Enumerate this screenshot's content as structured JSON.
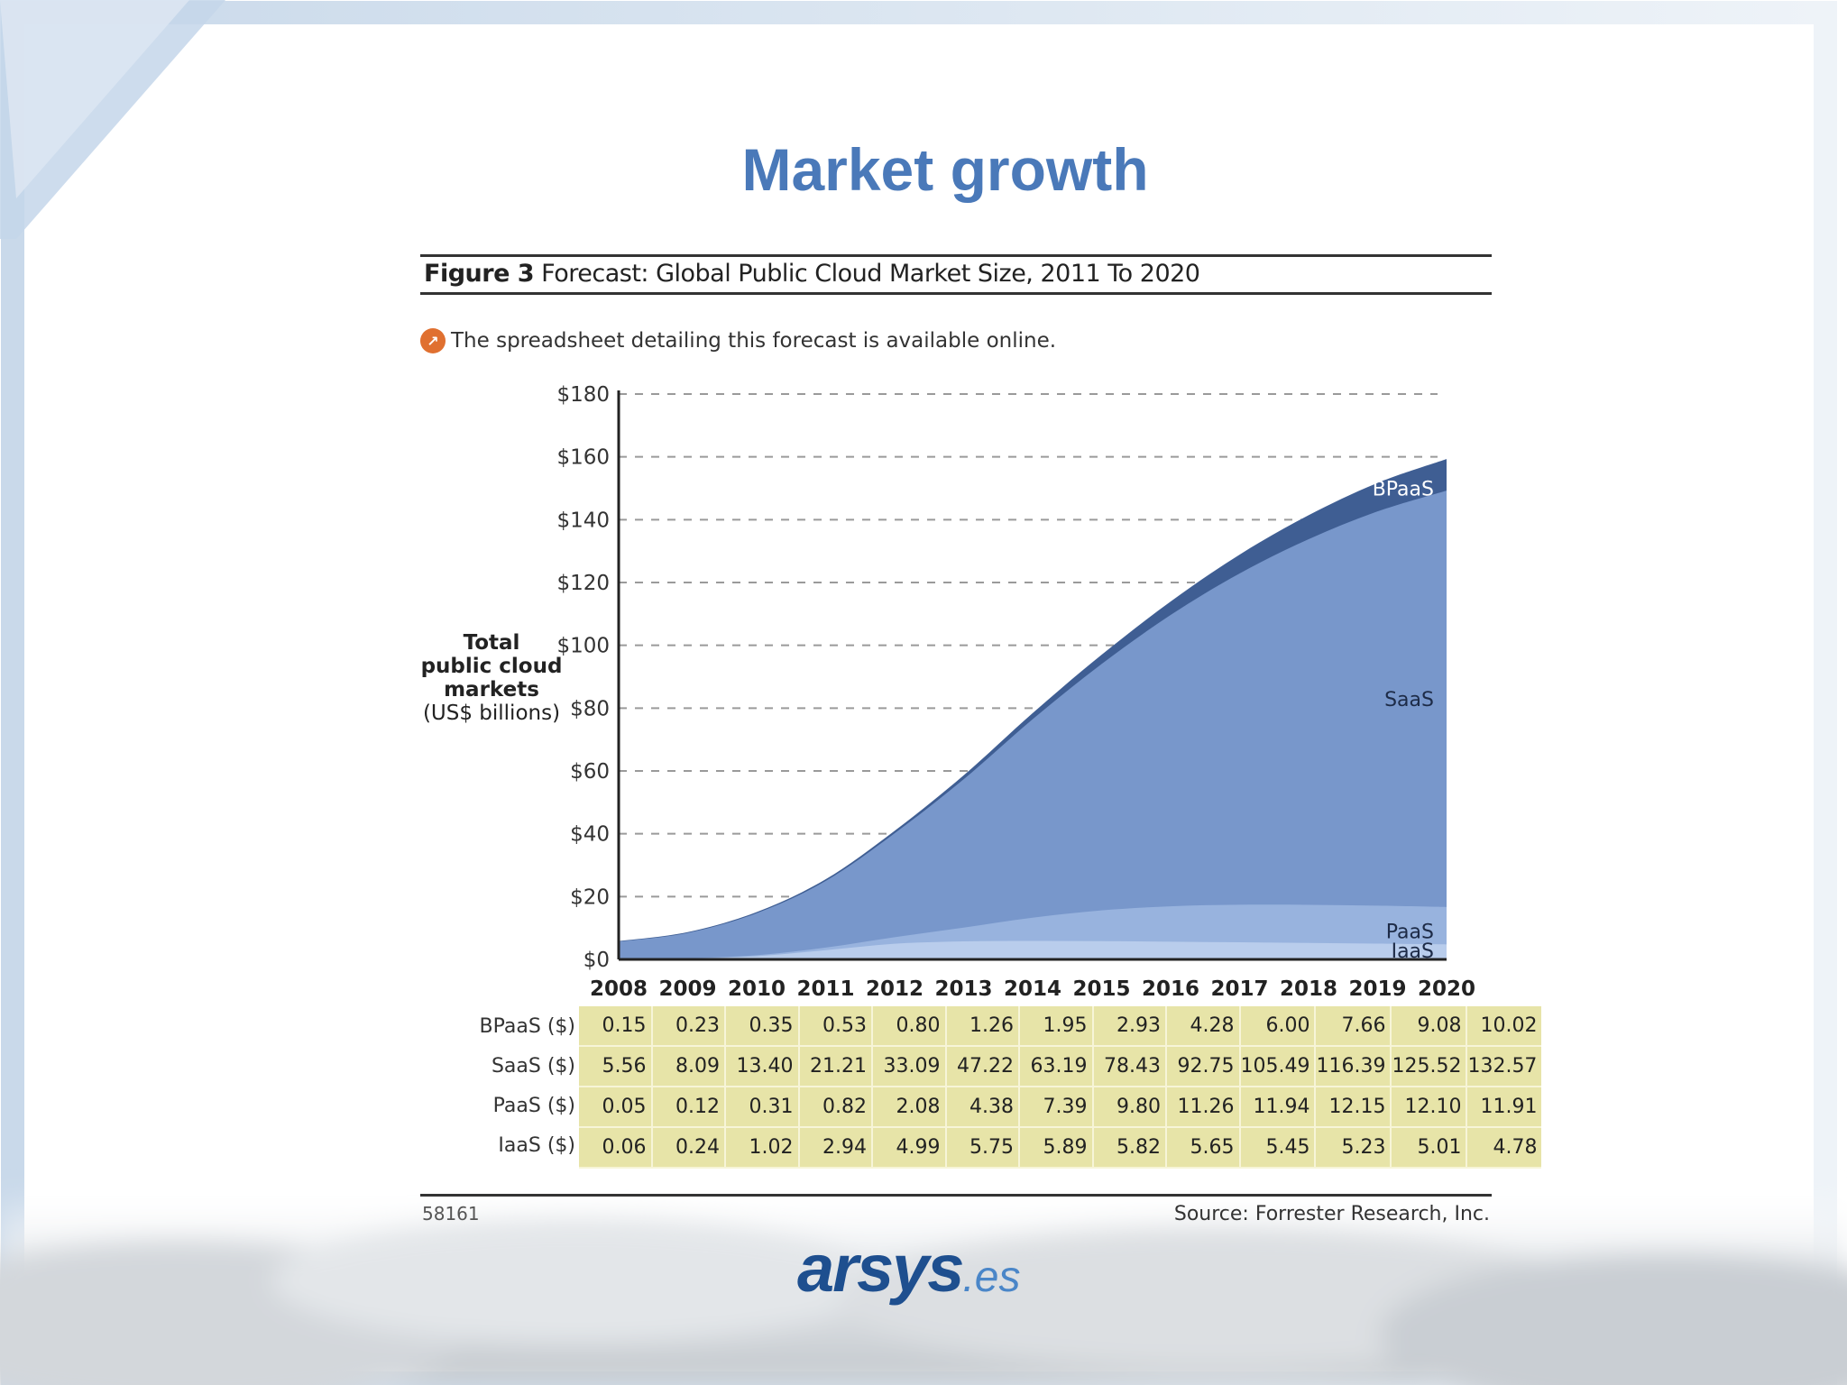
{
  "slide": {
    "title": "Market growth",
    "logo_main": "arsys",
    "logo_suffix": ".es"
  },
  "figure": {
    "caption_label": "Figure 3",
    "caption_text": "Forecast: Global Public Cloud Market Size, 2011 To 2020",
    "note": "The spreadsheet detailing this forecast is available online.",
    "note_icon": "info-arrow-icon",
    "footer_id": "58161",
    "footer_source": "Source: Forrester Research, Inc."
  },
  "colors": {
    "title": "#4a79b9",
    "BPaaS": "#3f5e93",
    "SaaS": "#7897cb",
    "PaaS": "#98b3de",
    "IaaS": "#b9cdec",
    "table_bg": "#e7e4a8"
  },
  "chart_data": {
    "type": "area",
    "stacked": true,
    "ylabel": "Total public cloud markets (US$ billions)",
    "ylabel_lines": [
      "Total",
      "public cloud",
      "markets",
      "(US$ billions)"
    ],
    "ylim": [
      0,
      180
    ],
    "yticks": [
      "$0",
      "$20",
      "$40",
      "$60",
      "$80",
      "$100",
      "$120",
      "$140",
      "$160",
      "$180"
    ],
    "ytick_values": [
      0,
      20,
      40,
      60,
      80,
      100,
      120,
      140,
      160,
      180
    ],
    "grid": true,
    "categories": [
      "2008",
      "2009",
      "2010",
      "2011",
      "2012",
      "2013",
      "2014",
      "2015",
      "2016",
      "2017",
      "2018",
      "2019",
      "2020"
    ],
    "series": [
      {
        "name": "IaaS",
        "label": "IaaS ($)",
        "values": [
          0.06,
          0.24,
          1.02,
          2.94,
          4.99,
          5.75,
          5.89,
          5.82,
          5.65,
          5.45,
          5.23,
          5.01,
          4.78
        ]
      },
      {
        "name": "PaaS",
        "label": "PaaS ($)",
        "values": [
          0.05,
          0.12,
          0.31,
          0.82,
          2.08,
          4.38,
          7.39,
          9.8,
          11.26,
          11.94,
          12.15,
          12.1,
          11.91
        ]
      },
      {
        "name": "SaaS",
        "label": "SaaS ($)",
        "values": [
          5.56,
          8.09,
          13.4,
          21.21,
          33.09,
          47.22,
          63.19,
          78.43,
          92.75,
          105.49,
          116.39,
          125.52,
          132.57
        ]
      },
      {
        "name": "BPaaS",
        "label": "BPaaS ($)",
        "values": [
          0.15,
          0.23,
          0.35,
          0.53,
          0.8,
          1.26,
          1.95,
          2.93,
          4.28,
          6.0,
          7.66,
          9.08,
          10.02
        ]
      }
    ],
    "table": {
      "row_order": [
        "BPaaS",
        "SaaS",
        "PaaS",
        "IaaS"
      ],
      "rows": [
        {
          "label": "BPaaS ($)",
          "values": [
            "0.15",
            "0.23",
            "0.35",
            "0.53",
            "0.80",
            "1.26",
            "1.95",
            "2.93",
            "4.28",
            "6.00",
            "7.66",
            "9.08",
            "10.02"
          ]
        },
        {
          "label": "SaaS ($)",
          "values": [
            "5.56",
            "8.09",
            "13.40",
            "21.21",
            "33.09",
            "47.22",
            "63.19",
            "78.43",
            "92.75",
            "105.49",
            "116.39",
            "125.52",
            "132.57"
          ]
        },
        {
          "label": "PaaS ($)",
          "values": [
            "0.05",
            "0.12",
            "0.31",
            "0.82",
            "2.08",
            "4.38",
            "7.39",
            "9.80",
            "11.26",
            "11.94",
            "12.15",
            "12.10",
            "11.91"
          ]
        },
        {
          "label": "IaaS ($)",
          "values": [
            "0.06",
            "0.24",
            "1.02",
            "2.94",
            "4.99",
            "5.75",
            "5.89",
            "5.82",
            "5.65",
            "5.45",
            "5.23",
            "5.01",
            "4.78"
          ]
        }
      ]
    }
  }
}
